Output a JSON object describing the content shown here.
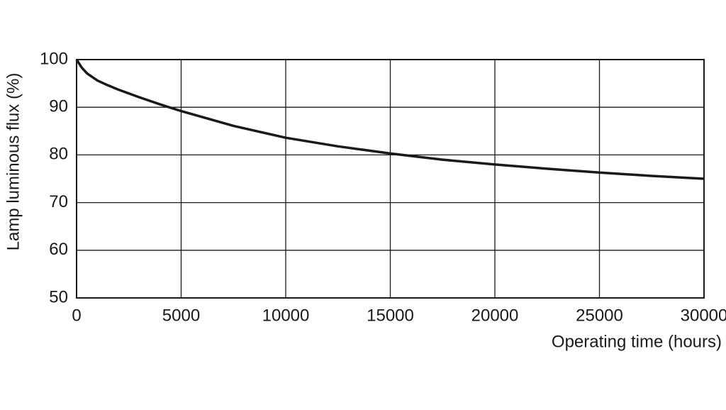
{
  "chart_data": {
    "type": "line",
    "x_label": "Operating time (hours)",
    "y_label": "Lamp luminous flux (%)",
    "x": [
      0,
      250,
      500,
      1000,
      1500,
      2000,
      3000,
      4000,
      5000,
      7500,
      10000,
      12500,
      15000,
      17500,
      20000,
      22500,
      25000,
      27500,
      30000
    ],
    "series": [
      {
        "color": "#1a1a1a",
        "values": [
          100,
          98.3,
          97.1,
          95.6,
          94.6,
          93.7,
          92.1,
          90.6,
          89.2,
          86.1,
          83.6,
          81.8,
          80.3,
          79.0,
          78.0,
          77.1,
          76.3,
          75.6,
          75.0
        ]
      }
    ],
    "xlim": [
      0,
      30000
    ],
    "xticks": [
      0,
      5000,
      10000,
      15000,
      20000,
      25000,
      30000
    ],
    "ylim": [
      50,
      100
    ],
    "yticks": [
      50,
      60,
      70,
      80,
      90,
      100
    ],
    "grid": true
  }
}
